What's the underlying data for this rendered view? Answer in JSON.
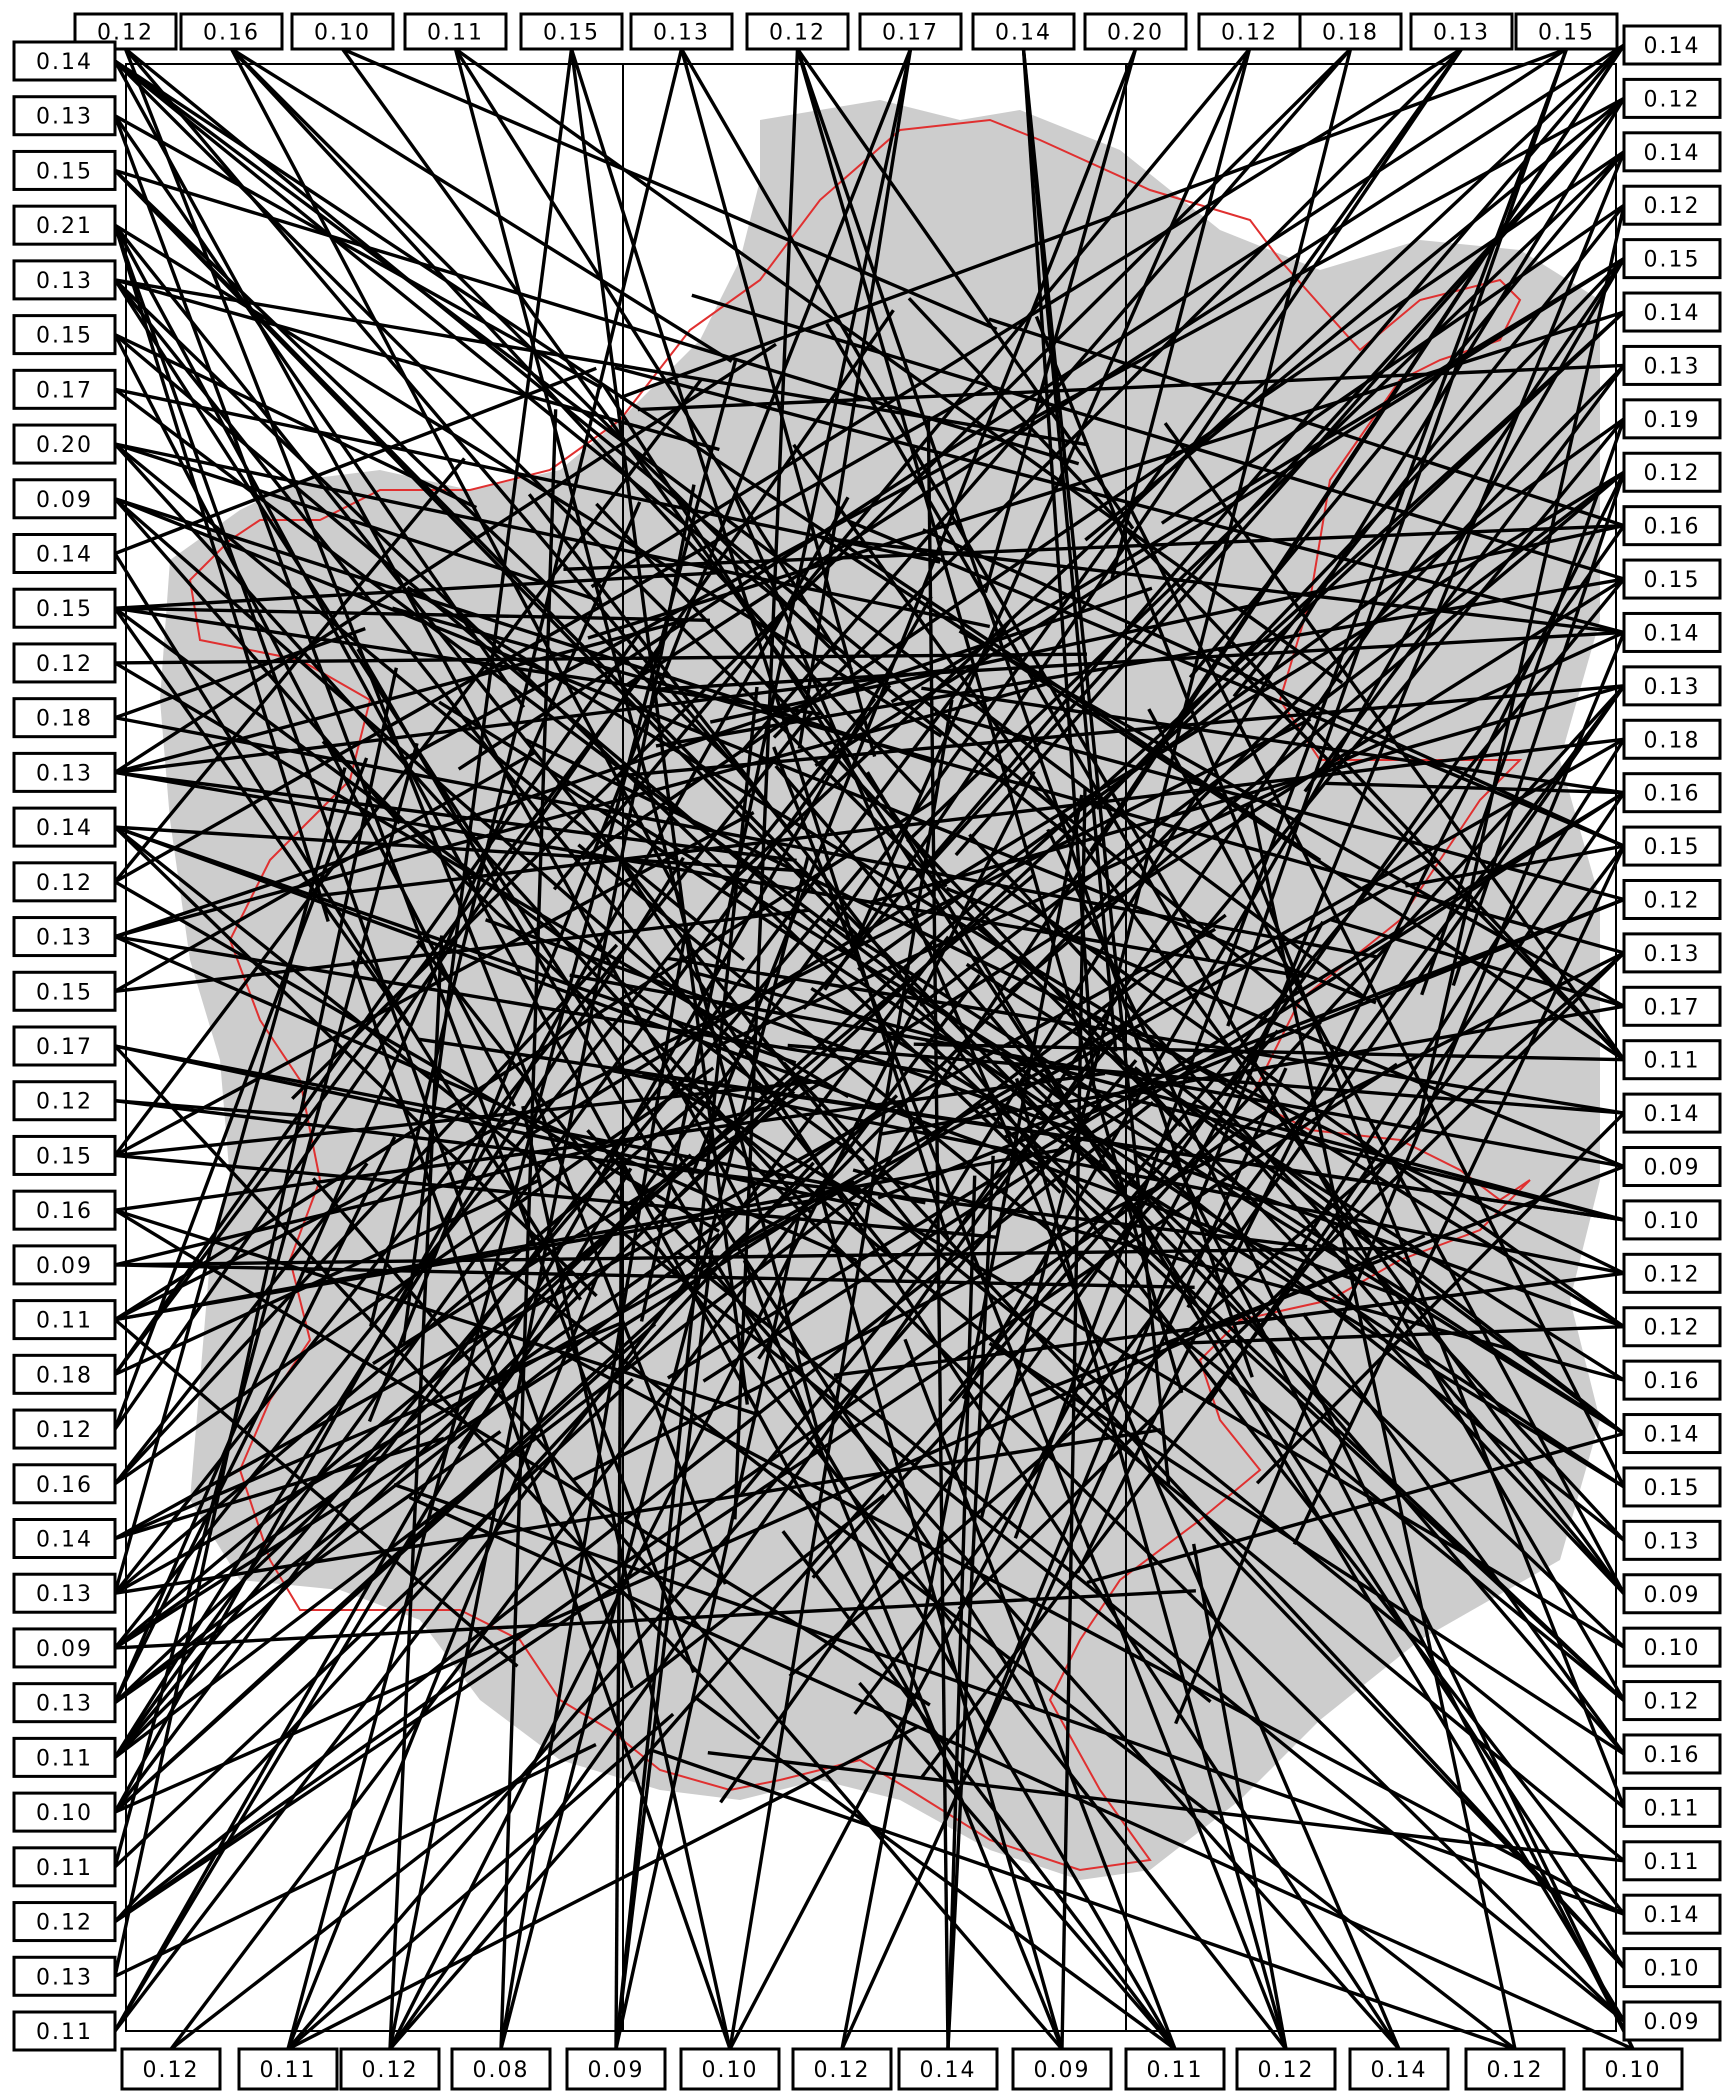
{
  "labels": {
    "top": [
      "0.12",
      "0.16",
      "0.10",
      "0.11",
      "0.15",
      "0.13",
      "0.12",
      "0.17",
      "0.14",
      "0.20",
      "0.12",
      "0.18",
      "0.13",
      "0.15"
    ],
    "left": [
      "0.14",
      "0.13",
      "0.15",
      "0.21",
      "0.13",
      "0.15",
      "0.17",
      "0.20",
      "0.09",
      "0.14",
      "0.15",
      "0.12",
      "0.18",
      "0.13",
      "0.14",
      "0.12",
      "0.13",
      "0.15",
      "0.17",
      "0.12",
      "0.15",
      "0.16",
      "0.09",
      "0.11",
      "0.18",
      "0.12",
      "0.16",
      "0.14",
      "0.13",
      "0.09",
      "0.13",
      "0.11",
      "0.10",
      "0.11",
      "0.12",
      "0.13",
      "0.11"
    ],
    "right": [
      "0.14",
      "0.12",
      "0.14",
      "0.12",
      "0.15",
      "0.14",
      "0.13",
      "0.19",
      "0.12",
      "0.16",
      "0.15",
      "0.14",
      "0.13",
      "0.18",
      "0.16",
      "0.15",
      "0.12",
      "0.13",
      "0.17",
      "0.11",
      "0.14",
      "0.09",
      "0.10",
      "0.12",
      "0.12",
      "0.16",
      "0.14",
      "0.15",
      "0.13",
      "0.09",
      "0.10",
      "0.12",
      "0.16",
      "0.11",
      "0.11",
      "0.14",
      "0.10",
      "0.09"
    ],
    "bottom": [
      "0.12",
      "0.11",
      "0.12",
      "0.08",
      "0.09",
      "0.10",
      "0.12",
      "0.14",
      "0.09",
      "0.11",
      "0.12",
      "0.14",
      "0.12",
      "0.10"
    ]
  },
  "map": {
    "boundary_color": "#e03030",
    "background": "#ffffff",
    "base_tone": "#c8c8c8",
    "line_color": "#000000"
  }
}
